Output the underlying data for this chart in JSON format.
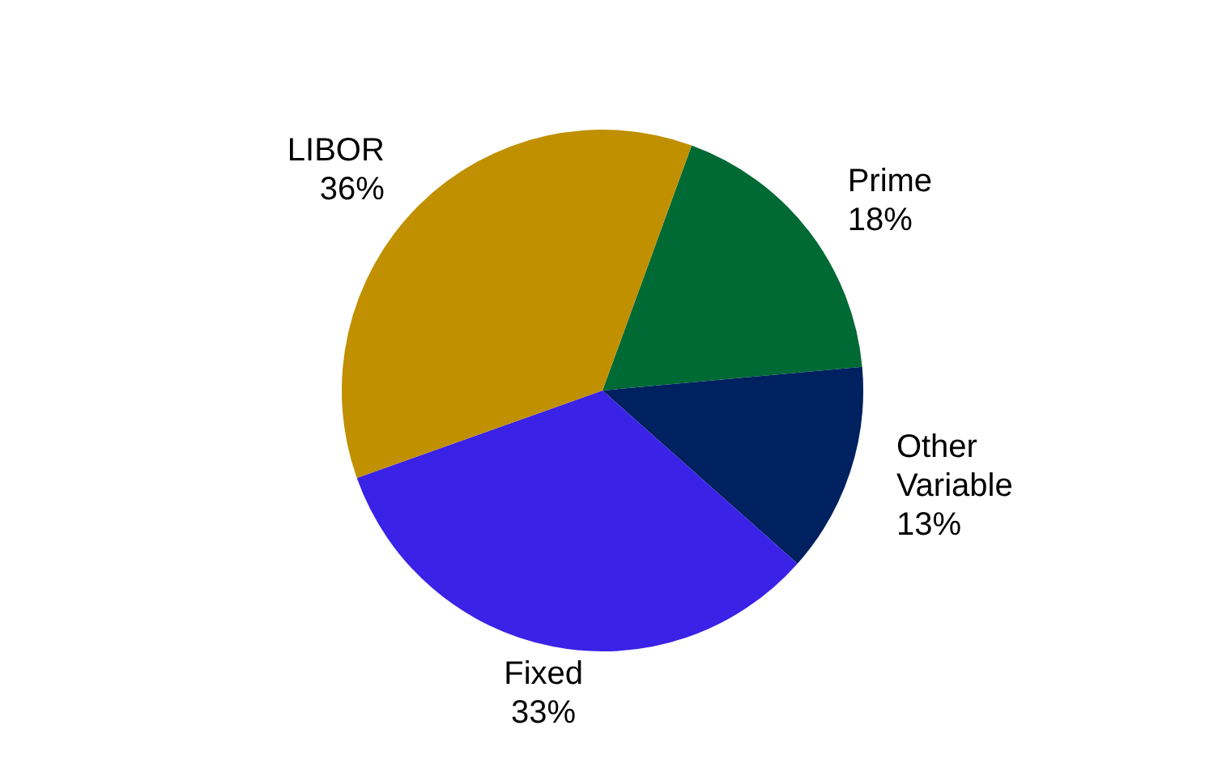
{
  "chart_data": {
    "type": "pie",
    "categories": [
      "Prime",
      "Other Variable",
      "Fixed",
      "LIBOR"
    ],
    "values": [
      18,
      13,
      33,
      36
    ],
    "value_labels": [
      "18%",
      "13%",
      "33%",
      "36%"
    ],
    "colors": [
      "#006a35",
      "#00215f",
      "#3a22e6",
      "#c09000"
    ],
    "legend": false
  }
}
